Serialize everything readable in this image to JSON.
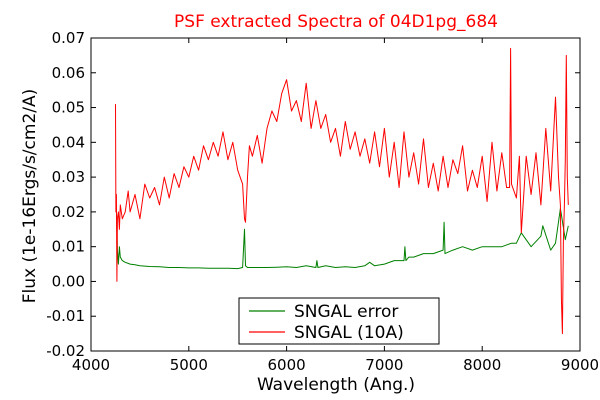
{
  "chart_data": {
    "type": "line",
    "title": "PSF extracted Spectra of 04D1pg_684",
    "title_color": "#ff0000",
    "xlabel": "Wavelength (Ang.)",
    "ylabel": "Flux (1e-16Ergs/s/cm2/A)",
    "xlim": [
      4000,
      9000
    ],
    "ylim": [
      -0.02,
      0.07
    ],
    "xticks": [
      4000,
      5000,
      6000,
      7000,
      8000,
      9000
    ],
    "xtick_labels": [
      "4000",
      "5000",
      "6000",
      "7000",
      "8000",
      "9000"
    ],
    "yticks": [
      -0.02,
      -0.01,
      0.0,
      0.01,
      0.02,
      0.03,
      0.04,
      0.05,
      0.06,
      0.07
    ],
    "ytick_labels": [
      "-0.02",
      "-0.01",
      "0.00",
      "0.01",
      "0.02",
      "0.03",
      "0.04",
      "0.05",
      "0.06",
      "0.07"
    ],
    "grid": false,
    "legend_position": "bottom-center",
    "series": [
      {
        "name": "SNGAL error",
        "color": "#008000",
        "x": [
          4260,
          4270,
          4280,
          4290,
          4300,
          4320,
          4350,
          4400,
          4450,
          4500,
          4600,
          4700,
          4800,
          4900,
          5000,
          5100,
          5200,
          5300,
          5400,
          5500,
          5550,
          5570,
          5580,
          5600,
          5700,
          5800,
          5900,
          6000,
          6100,
          6200,
          6300,
          6310,
          6320,
          6400,
          6500,
          6600,
          6700,
          6800,
          6850,
          6900,
          7000,
          7100,
          7200,
          7210,
          7220,
          7250,
          7300,
          7400,
          7500,
          7600,
          7610,
          7620,
          7700,
          7800,
          7900,
          8000,
          8100,
          8200,
          8300,
          8350,
          8400,
          8500,
          8600,
          8620,
          8700,
          8750,
          8800,
          8850,
          8880
        ],
        "values": [
          0.021,
          0.009,
          0.005,
          0.01,
          0.007,
          0.006,
          0.0055,
          0.005,
          0.0048,
          0.0045,
          0.0043,
          0.0042,
          0.004,
          0.004,
          0.0039,
          0.0039,
          0.0038,
          0.0038,
          0.0038,
          0.0037,
          0.004,
          0.015,
          0.0045,
          0.004,
          0.004,
          0.004,
          0.0041,
          0.0042,
          0.004,
          0.0045,
          0.004,
          0.006,
          0.004,
          0.0045,
          0.004,
          0.0042,
          0.004,
          0.0045,
          0.0055,
          0.0045,
          0.005,
          0.006,
          0.006,
          0.01,
          0.006,
          0.007,
          0.007,
          0.008,
          0.008,
          0.009,
          0.017,
          0.008,
          0.009,
          0.01,
          0.009,
          0.01,
          0.01,
          0.01,
          0.011,
          0.011,
          0.014,
          0.01,
          0.013,
          0.016,
          0.009,
          0.011,
          0.021,
          0.012,
          0.016
        ]
      },
      {
        "name": "SNGAL (10A)",
        "color": "#ff0000",
        "x": [
          4250,
          4255,
          4260,
          4265,
          4270,
          4280,
          4290,
          4300,
          4320,
          4350,
          4380,
          4400,
          4450,
          4500,
          4550,
          4600,
          4650,
          4700,
          4750,
          4800,
          4850,
          4900,
          4950,
          5000,
          5050,
          5100,
          5150,
          5200,
          5250,
          5300,
          5350,
          5400,
          5450,
          5500,
          5550,
          5570,
          5580,
          5600,
          5620,
          5650,
          5700,
          5750,
          5800,
          5850,
          5900,
          5950,
          6000,
          6050,
          6100,
          6150,
          6200,
          6250,
          6300,
          6350,
          6400,
          6450,
          6500,
          6550,
          6600,
          6650,
          6700,
          6750,
          6800,
          6850,
          6900,
          6950,
          7000,
          7050,
          7100,
          7150,
          7200,
          7250,
          7300,
          7350,
          7400,
          7450,
          7500,
          7550,
          7600,
          7650,
          7700,
          7750,
          7800,
          7850,
          7900,
          7950,
          8000,
          8050,
          8100,
          8150,
          8200,
          8250,
          8280,
          8290,
          8300,
          8350,
          8380,
          8400,
          8450,
          8500,
          8550,
          8600,
          8650,
          8700,
          8750,
          8780,
          8800,
          8810,
          8820,
          8830,
          8840,
          8850,
          8860,
          8870,
          8880
        ],
        "values": [
          0.051,
          0.02,
          0.025,
          0.0,
          0.018,
          0.02,
          0.015,
          0.022,
          0.018,
          0.02,
          0.026,
          0.02,
          0.025,
          0.018,
          0.028,
          0.024,
          0.027,
          0.022,
          0.03,
          0.024,
          0.031,
          0.027,
          0.033,
          0.03,
          0.036,
          0.032,
          0.039,
          0.035,
          0.04,
          0.036,
          0.043,
          0.035,
          0.04,
          0.032,
          0.028,
          0.018,
          0.017,
          0.03,
          0.039,
          0.036,
          0.042,
          0.034,
          0.044,
          0.049,
          0.046,
          0.054,
          0.058,
          0.049,
          0.052,
          0.046,
          0.057,
          0.044,
          0.052,
          0.044,
          0.048,
          0.04,
          0.044,
          0.036,
          0.046,
          0.038,
          0.043,
          0.036,
          0.041,
          0.034,
          0.043,
          0.033,
          0.044,
          0.03,
          0.04,
          0.027,
          0.043,
          0.03,
          0.037,
          0.028,
          0.041,
          0.027,
          0.034,
          0.026,
          0.036,
          0.027,
          0.035,
          0.031,
          0.039,
          0.026,
          0.032,
          0.027,
          0.036,
          0.023,
          0.04,
          0.026,
          0.037,
          0.027,
          0.027,
          0.067,
          0.028,
          0.024,
          0.036,
          0.014,
          0.036,
          0.025,
          0.037,
          0.022,
          0.044,
          0.026,
          0.053,
          0.03,
          0.022,
          -0.005,
          -0.015,
          0.012,
          0.022,
          0.035,
          0.065,
          0.03,
          0.022
        ]
      }
    ]
  }
}
